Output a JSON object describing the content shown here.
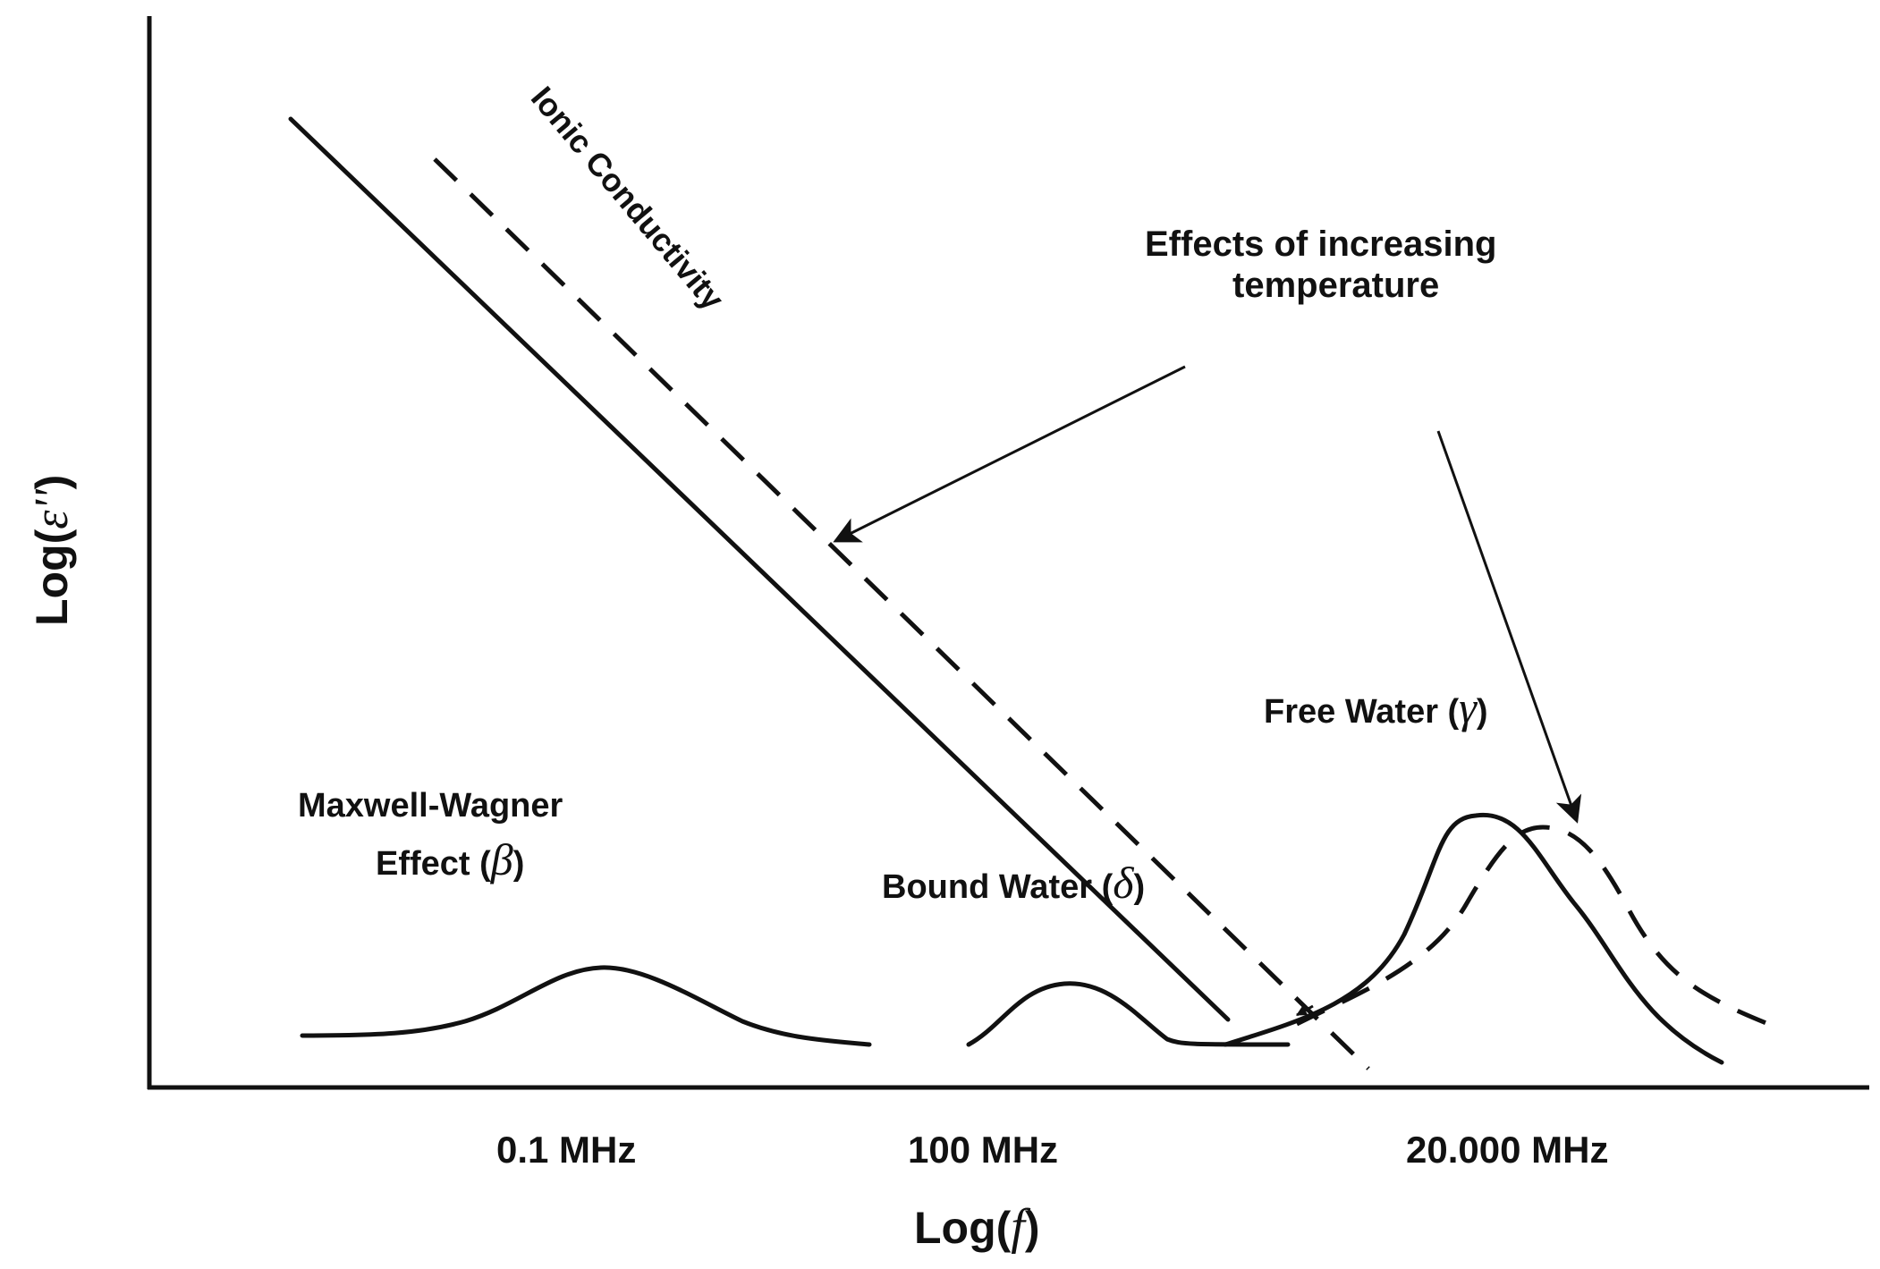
{
  "axes": {
    "x_label": "Log(",
    "x_symbol": "f",
    "x_close": ")",
    "y_label": "Log(",
    "y_symbol": "ε''",
    "y_close": ")",
    "ticks": [
      "0.1 MHz",
      "100 MHz",
      "20.000 MHz"
    ]
  },
  "labels": {
    "ionic": "Ionic Conductivity",
    "effects_line1": "Effects of increasing",
    "effects_line2": "temperature",
    "mw_line1": "Maxwell-Wagner",
    "mw_line2": "Effect (",
    "mw_symbol": "β",
    "mw_close": ")",
    "bound": "Bound Water (",
    "bound_symbol": "δ",
    "bound_close": ")",
    "free": "Free Water (",
    "free_symbol": "γ",
    "free_close": ")"
  },
  "colors": {
    "ink": "#111111",
    "background": "#ffffff"
  }
}
